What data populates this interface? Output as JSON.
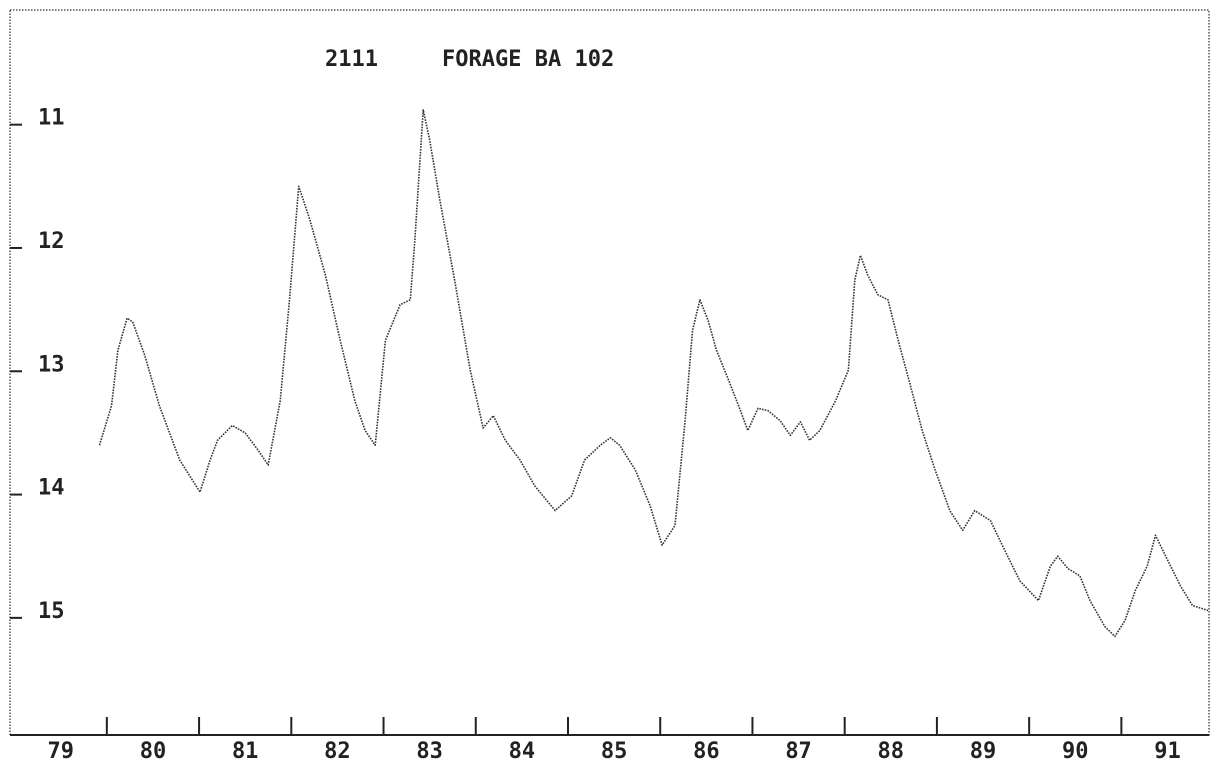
{
  "chart_data": {
    "type": "line",
    "well_id": "2111",
    "title": "FORAGE BA 102",
    "x": [
      1979.92,
      1980.05,
      1980.12,
      1980.22,
      1980.28,
      1980.41,
      1980.57,
      1980.79,
      1981.01,
      1981.12,
      1981.2,
      1981.36,
      1981.5,
      1981.64,
      1981.75,
      1981.88,
      1981.98,
      1982.08,
      1982.2,
      1982.37,
      1982.53,
      1982.69,
      1982.8,
      1982.91,
      1983.02,
      1983.18,
      1983.29,
      1983.34,
      1983.43,
      1983.5,
      1983.61,
      1983.77,
      1983.94,
      1984.08,
      1984.19,
      1984.32,
      1984.48,
      1984.64,
      1984.86,
      1985.04,
      1985.18,
      1985.35,
      1985.46,
      1985.56,
      1985.73,
      1985.89,
      1986.02,
      1986.16,
      1986.27,
      1986.35,
      1986.43,
      1986.52,
      1986.61,
      1986.74,
      1986.87,
      1986.95,
      1987.06,
      1987.17,
      1987.3,
      1987.41,
      1987.52,
      1987.62,
      1987.73,
      1987.9,
      1988.04,
      1988.11,
      1988.17,
      1988.25,
      1988.36,
      1988.47,
      1988.58,
      1988.71,
      1988.84,
      1988.98,
      1989.14,
      1989.28,
      1989.41,
      1989.58,
      1989.74,
      1989.9,
      1990.1,
      1990.23,
      1990.31,
      1990.42,
      1990.55,
      1990.66,
      1990.82,
      1990.93,
      1991.04,
      1991.15,
      1991.28,
      1991.37,
      1991.48,
      1991.64,
      1991.77,
      1991.94
    ],
    "values": [
      13.6,
      13.28,
      12.83,
      12.57,
      12.6,
      12.87,
      13.28,
      13.72,
      13.98,
      13.72,
      13.56,
      13.44,
      13.5,
      13.64,
      13.76,
      13.24,
      12.42,
      11.5,
      11.77,
      12.22,
      12.75,
      13.24,
      13.48,
      13.6,
      12.75,
      12.46,
      12.42,
      11.93,
      10.88,
      11.12,
      11.61,
      12.26,
      12.99,
      13.46,
      13.36,
      13.56,
      13.72,
      13.93,
      14.13,
      14.01,
      13.72,
      13.6,
      13.54,
      13.6,
      13.8,
      14.09,
      14.41,
      14.25,
      13.4,
      12.67,
      12.42,
      12.59,
      12.83,
      13.07,
      13.32,
      13.48,
      13.3,
      13.32,
      13.4,
      13.52,
      13.41,
      13.56,
      13.48,
      13.24,
      12.99,
      12.26,
      12.06,
      12.22,
      12.38,
      12.42,
      12.75,
      13.11,
      13.48,
      13.8,
      14.13,
      14.29,
      14.13,
      14.21,
      14.46,
      14.7,
      14.86,
      14.58,
      14.5,
      14.6,
      14.66,
      14.86,
      15.07,
      15.15,
      15.02,
      14.78,
      14.58,
      14.33,
      14.5,
      14.74,
      14.9,
      14.94
    ],
    "color": "#333333",
    "xlim": [
      1978.95,
      1991.95
    ],
    "xticks": [
      {
        "value": 1979.5,
        "label": "79"
      },
      {
        "value": 1980.5,
        "label": "80"
      },
      {
        "value": 1981.5,
        "label": "81"
      },
      {
        "value": 1982.5,
        "label": "82"
      },
      {
        "value": 1983.5,
        "label": "83"
      },
      {
        "value": 1984.5,
        "label": "84"
      },
      {
        "value": 1985.5,
        "label": "85"
      },
      {
        "value": 1986.5,
        "label": "86"
      },
      {
        "value": 1987.5,
        "label": "87"
      },
      {
        "value": 1988.5,
        "label": "88"
      },
      {
        "value": 1989.5,
        "label": "89"
      },
      {
        "value": 1990.5,
        "label": "90"
      },
      {
        "value": 1991.5,
        "label": "91"
      }
    ],
    "xtick_marks": [
      1980,
      1981,
      1982,
      1983,
      1984,
      1985,
      1986,
      1987,
      1988,
      1989,
      1990,
      1991
    ],
    "ylim": [
      10.07,
      15.95
    ],
    "yticks": [
      11,
      12,
      13,
      14,
      15
    ],
    "inverted_y": true,
    "grid": false
  }
}
